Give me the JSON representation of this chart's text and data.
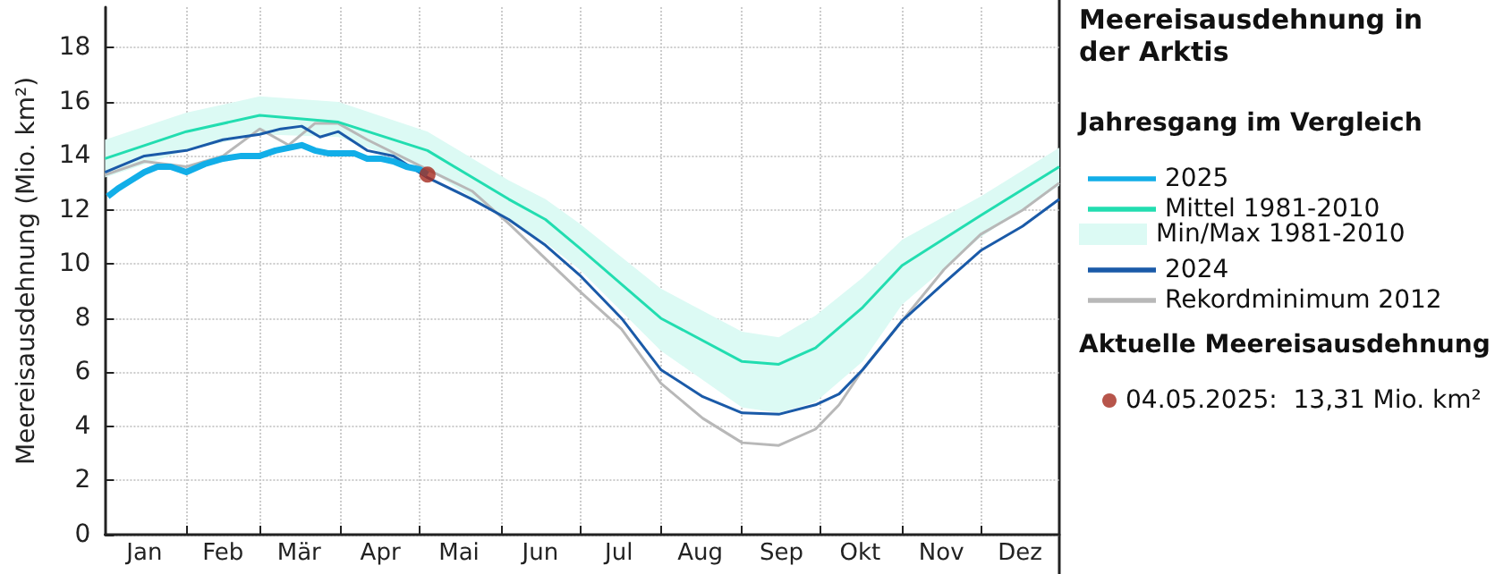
{
  "chart_data": {
    "type": "line",
    "title": "Meereisausdehnung in der Arktis",
    "ylabel": "Meereisausdehnung (Mio. km²)",
    "legend_title": "Jahresgang im Vergleich",
    "annotations": [
      "Min/Max 1981-2010",
      "Aktuelle Meereisausdehnung"
    ],
    "legend": "right",
    "grid": true,
    "xlim": [
      "--01-01",
      "--12-31"
    ],
    "xticks": [
      {
        "value": "--01-16",
        "label": "Jan"
      },
      {
        "value": "--02-01",
        "label": null
      },
      {
        "value": "--02-15",
        "label": "Feb"
      },
      {
        "value": "--03-01",
        "label": null
      },
      {
        "value": "--03-16",
        "label": "Mär"
      },
      {
        "value": "--04-01",
        "label": null
      },
      {
        "value": "--04-16",
        "label": "Apr"
      },
      {
        "value": "--05-01",
        "label": null
      },
      {
        "value": "--05-16",
        "label": "Mai"
      },
      {
        "value": "--06-01",
        "label": null
      },
      {
        "value": "--06-16",
        "label": "Jun"
      },
      {
        "value": "--07-01",
        "label": null
      },
      {
        "value": "--07-16",
        "label": "Jul"
      },
      {
        "value": "--08-01",
        "label": null
      },
      {
        "value": "--08-16",
        "label": "Aug"
      },
      {
        "value": "--09-01",
        "label": null
      },
      {
        "value": "--09-16",
        "label": "Sep"
      },
      {
        "value": "--10-01",
        "label": null
      },
      {
        "value": "--10-16",
        "label": "Okt"
      },
      {
        "value": "--11-01",
        "label": null
      },
      {
        "value": "--11-16",
        "label": "Nov"
      },
      {
        "value": "--12-01",
        "label": null
      },
      {
        "value": "--12-16",
        "label": "Dez"
      }
    ],
    "ylim": [
      0,
      19.5
    ],
    "yticks": [
      0,
      2,
      4,
      6,
      8,
      10,
      12,
      14,
      16,
      18
    ],
    "marker": "none",
    "series": [
      {
        "name": "2025",
        "color": "#12aee8",
        "x": [
          "--01-02",
          "--01-06",
          "--01-11",
          "--01-16",
          "--01-21",
          "--01-26",
          "--02-01",
          "--02-08",
          "--02-15",
          "--02-22",
          "--03-01",
          "--03-07",
          "--03-12",
          "--03-17",
          "--03-22",
          "--03-27",
          "--04-01",
          "--04-06",
          "--04-11",
          "--04-16",
          "--04-21",
          "--04-26",
          "--05-01",
          "--05-04"
        ],
        "values": [
          12.5,
          12.8,
          13.1,
          13.4,
          13.6,
          13.6,
          13.4,
          13.7,
          13.9,
          14.0,
          14.0,
          14.2,
          14.3,
          14.4,
          14.2,
          14.1,
          14.1,
          14.1,
          13.9,
          13.9,
          13.8,
          13.6,
          13.5,
          13.31
        ]
      },
      {
        "name": "Mittel 1981-2010",
        "color": "#22ddb0",
        "x": [
          "--01-01",
          "--02-01",
          "--03-01",
          "--03-31",
          "--05-04",
          "--06-04",
          "--06-18",
          "--07-01",
          "--08-01",
          "--09-01",
          "--09-15",
          "--09-29",
          "--10-17",
          "--11-01",
          "--12-01",
          "--12-31"
        ],
        "values": [
          13.9,
          14.9,
          15.5,
          15.25,
          14.2,
          12.4,
          11.65,
          10.6,
          8.0,
          6.4,
          6.3,
          6.9,
          8.4,
          9.95,
          11.8,
          13.6
        ],
        "lower": [
          13.2,
          14.2,
          14.8,
          14.7,
          13.5,
          11.6,
          10.8,
          9.8,
          6.8,
          4.7,
          4.5,
          4.9,
          6.4,
          8.5,
          11.0,
          12.9
        ],
        "upper": [
          14.6,
          15.6,
          16.2,
          16.0,
          14.9,
          13.1,
          12.4,
          11.5,
          9.1,
          7.5,
          7.3,
          8.1,
          9.5,
          10.9,
          12.5,
          14.3
        ]
      },
      {
        "name": "2024",
        "color": "#1a5aa8",
        "x": [
          "--01-01",
          "--01-16",
          "--02-01",
          "--02-15",
          "--03-01",
          "--03-09",
          "--03-17",
          "--03-24",
          "--03-31",
          "--04-11",
          "--04-21",
          "--05-04",
          "--05-21",
          "--06-04",
          "--06-18",
          "--07-01",
          "--07-17",
          "--08-01",
          "--08-17",
          "--09-01",
          "--09-15",
          "--09-29",
          "--10-08",
          "--10-17",
          "--11-01",
          "--11-17",
          "--12-01",
          "--12-17",
          "--12-31"
        ],
        "values": [
          13.4,
          14.0,
          14.2,
          14.6,
          14.8,
          15.0,
          15.1,
          14.7,
          14.9,
          14.2,
          14.0,
          13.2,
          12.4,
          11.65,
          10.7,
          9.6,
          8.0,
          6.1,
          5.1,
          4.5,
          4.45,
          4.8,
          5.2,
          6.1,
          7.9,
          9.3,
          10.5,
          11.4,
          12.4
        ]
      },
      {
        "name": "Rekordminimum 2012",
        "color": "#b8b8b8",
        "x": [
          "--01-01",
          "--01-16",
          "--02-01",
          "--02-15",
          "--03-01",
          "--03-12",
          "--03-22",
          "--03-31",
          "--04-11",
          "--05-04",
          "--05-21",
          "--06-04",
          "--06-18",
          "--07-01",
          "--07-17",
          "--08-01",
          "--08-17",
          "--09-01",
          "--09-15",
          "--09-29",
          "--10-08",
          "--10-17",
          "--11-01",
          "--11-17",
          "--12-01",
          "--12-17",
          "--12-31"
        ],
        "values": [
          13.3,
          13.8,
          13.6,
          14.0,
          15.0,
          14.4,
          15.2,
          15.2,
          14.6,
          13.5,
          12.7,
          11.5,
          10.2,
          9.0,
          7.6,
          5.6,
          4.3,
          3.4,
          3.3,
          3.9,
          4.8,
          6.1,
          7.9,
          9.8,
          11.1,
          12.0,
          13.0
        ]
      },
      {
        "name": "04.05.2025:  13,31 Mio. km²",
        "type": "scatter",
        "marker": "circle",
        "color": "#a52a1e",
        "x": [
          "--05-04"
        ],
        "values": [
          13.31
        ]
      }
    ]
  }
}
